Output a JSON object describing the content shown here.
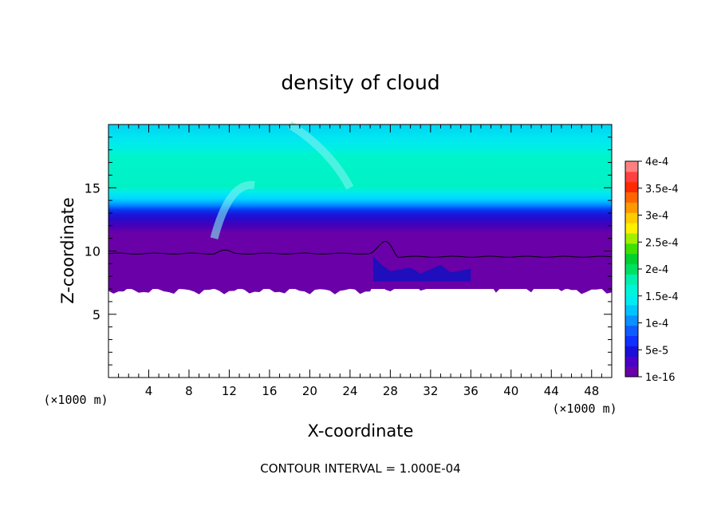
{
  "chart_data": {
    "type": "heatmap",
    "title": "density of cloud",
    "xlabel": "X-coordinate",
    "ylabel": "Z-coordinate",
    "x_unit_left": "(×1000 m)",
    "x_unit_right": "(×1000 m)",
    "footer": "CONTOUR INTERVAL = 1.000E-04",
    "xlim": [
      0,
      50
    ],
    "ylim": [
      0,
      20
    ],
    "x_ticks": [
      4,
      8,
      12,
      16,
      20,
      24,
      28,
      32,
      36,
      40,
      44,
      48
    ],
    "x_tick_labels": [
      "4",
      "8",
      "12",
      "16",
      "20",
      "24",
      "28",
      "32",
      "36",
      "40",
      "44",
      "48"
    ],
    "y_ticks": [
      5,
      10,
      15
    ],
    "y_tick_labels": [
      "5",
      "10",
      "15"
    ],
    "colorbar": {
      "labels": [
        "1e-16",
        "5e-5",
        "1e-4",
        "1.5e-4",
        "2e-4",
        "2.5e-4",
        "3e-4",
        "3.5e-4",
        "4e-4"
      ],
      "colors": [
        "#6a00a8",
        "#4b00c8",
        "#1a10d8",
        "#1030ff",
        "#0f5cff",
        "#0a90ff",
        "#00c4ff",
        "#00ecf0",
        "#00f5d8",
        "#00f0b0",
        "#00e060",
        "#00d030",
        "#40e000",
        "#a0f000",
        "#fff000",
        "#ffcc00",
        "#ff9900",
        "#ff6600",
        "#ff2a00",
        "#ff4040",
        "#ff8080"
      ],
      "range": [
        0,
        0.0004
      ]
    },
    "cloud_band": {
      "bottom_z": 7.0,
      "boundary_contour_z": 9.8,
      "peak_core_z": [
        13,
        16.5
      ],
      "top_z": 20
    }
  }
}
